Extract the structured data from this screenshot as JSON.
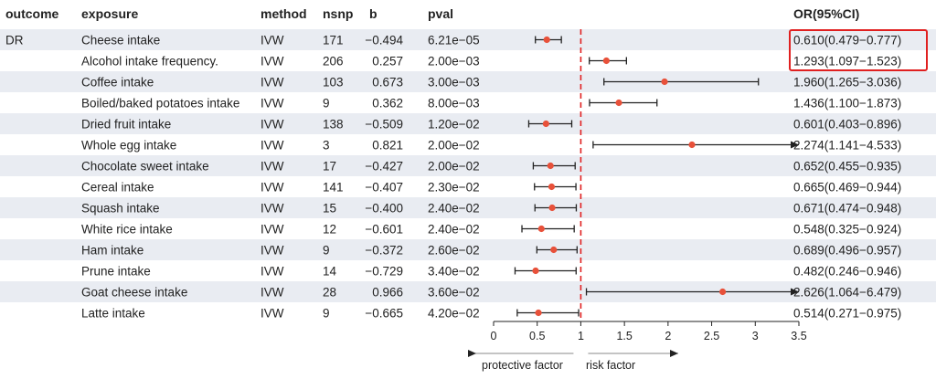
{
  "headers": {
    "outcome": "outcome",
    "exposure": "exposure",
    "method": "method",
    "nsnp": "nsnp",
    "b": "b",
    "pval": "pval",
    "or": "OR(95%CI)"
  },
  "outcome_label": "DR",
  "colors": {
    "point": "#e8513a",
    "reference_line": "#e02020",
    "highlight_box": "#e02020",
    "row_shade": "#e9ecf2",
    "line": "#222222"
  },
  "rows": [
    {
      "exposure": "Cheese intake",
      "method": "IVW",
      "nsnp": "171",
      "b": "−0.494",
      "pval": "6.21e−05",
      "or_text": "0.610(0.479−0.777)",
      "highlighted": true
    },
    {
      "exposure": "Alcohol intake frequency.",
      "method": "IVW",
      "nsnp": "206",
      "b": "0.257",
      "pval": "2.00e−03",
      "or_text": "1.293(1.097−1.523)",
      "highlighted": true
    },
    {
      "exposure": "Coffee intake",
      "method": "IVW",
      "nsnp": "103",
      "b": "0.673",
      "pval": "3.00e−03",
      "or_text": "1.960(1.265−3.036)",
      "highlighted": false
    },
    {
      "exposure": "Boiled/baked potatoes intake",
      "method": "IVW",
      "nsnp": "9",
      "b": "0.362",
      "pval": "8.00e−03",
      "or_text": "1.436(1.100−1.873)",
      "highlighted": false
    },
    {
      "exposure": "Dried fruit intake",
      "method": "IVW",
      "nsnp": "138",
      "b": "−0.509",
      "pval": "1.20e−02",
      "or_text": "0.601(0.403−0.896)",
      "highlighted": false
    },
    {
      "exposure": "Whole egg intake",
      "method": "IVW",
      "nsnp": "3",
      "b": "0.821",
      "pval": "2.00e−02",
      "or_text": "2.274(1.141−4.533)",
      "highlighted": false
    },
    {
      "exposure": "Chocolate sweet intake",
      "method": "IVW",
      "nsnp": "17",
      "b": "−0.427",
      "pval": "2.00e−02",
      "or_text": "0.652(0.455−0.935)",
      "highlighted": false
    },
    {
      "exposure": "Cereal intake",
      "method": "IVW",
      "nsnp": "141",
      "b": "−0.407",
      "pval": "2.30e−02",
      "or_text": "0.665(0.469−0.944)",
      "highlighted": false
    },
    {
      "exposure": "Squash intake",
      "method": "IVW",
      "nsnp": "15",
      "b": "−0.400",
      "pval": "2.40e−02",
      "or_text": "0.671(0.474−0.948)",
      "highlighted": false
    },
    {
      "exposure": "White rice intake",
      "method": "IVW",
      "nsnp": "12",
      "b": "−0.601",
      "pval": "2.40e−02",
      "or_text": "0.548(0.325−0.924)",
      "highlighted": false
    },
    {
      "exposure": "Ham intake",
      "method": "IVW",
      "nsnp": "9",
      "b": "−0.372",
      "pval": "2.60e−02",
      "or_text": "0.689(0.496−0.957)",
      "highlighted": false
    },
    {
      "exposure": "Prune intake",
      "method": "IVW",
      "nsnp": "14",
      "b": "−0.729",
      "pval": "3.40e−02",
      "or_text": "0.482(0.246−0.946)",
      "highlighted": false
    },
    {
      "exposure": "Goat cheese intake",
      "method": "IVW",
      "nsnp": "28",
      "b": "0.966",
      "pval": "3.60e−02",
      "or_text": "2.626(1.064−6.479)",
      "highlighted": false
    },
    {
      "exposure": "Latte intake",
      "method": "IVW",
      "nsnp": "9",
      "b": "−0.665",
      "pval": "4.20e−02",
      "or_text": "0.514(0.271−0.975)",
      "highlighted": false
    }
  ],
  "chart_data": {
    "type": "scatter",
    "subtype": "forest-plot",
    "categories": [
      "Cheese intake",
      "Alcohol intake frequency.",
      "Coffee intake",
      "Boiled/baked potatoes intake",
      "Dried fruit intake",
      "Whole egg intake",
      "Chocolate sweet intake",
      "Cereal intake",
      "Squash intake",
      "White rice intake",
      "Ham intake",
      "Prune intake",
      "Goat cheese intake",
      "Latte intake"
    ],
    "or": [
      0.61,
      1.293,
      1.96,
      1.436,
      0.601,
      2.274,
      0.652,
      0.665,
      0.671,
      0.548,
      0.689,
      0.482,
      2.626,
      0.514
    ],
    "ci_low": [
      0.479,
      1.097,
      1.265,
      1.1,
      0.403,
      1.141,
      0.455,
      0.469,
      0.474,
      0.325,
      0.496,
      0.246,
      1.064,
      0.271
    ],
    "ci_high": [
      0.777,
      1.523,
      3.036,
      1.873,
      0.896,
      4.533,
      0.935,
      0.944,
      0.948,
      0.924,
      0.957,
      0.946,
      6.479,
      0.975
    ],
    "xlim": [
      0,
      3.5
    ],
    "xticks": [
      0,
      0.5,
      1,
      1.5,
      2,
      2.5,
      3,
      3.5
    ],
    "reference_line": 1,
    "xlabel_left": "protective factor",
    "xlabel_right": "risk factor",
    "grid": false,
    "legend": "none"
  }
}
